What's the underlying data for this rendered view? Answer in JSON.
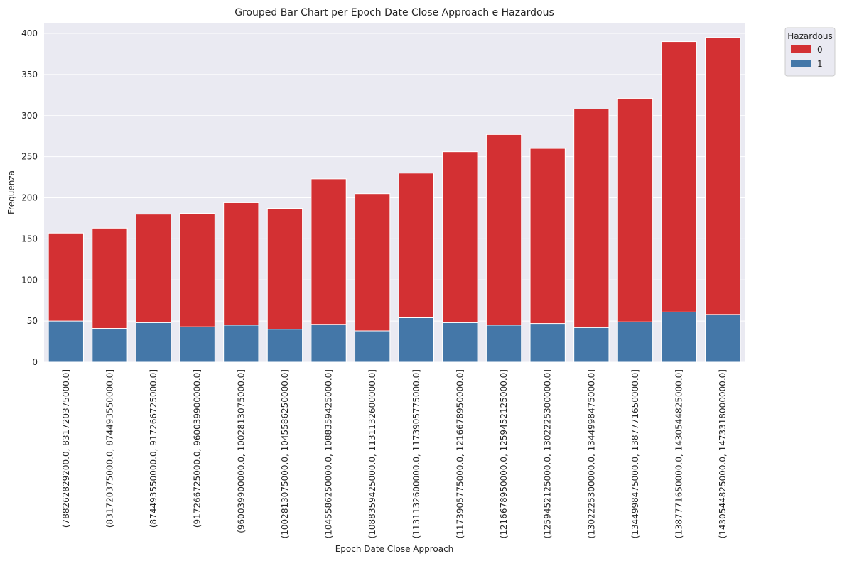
{
  "chart_data": {
    "type": "bar",
    "title": "Grouped Bar Chart per Epoch Date Close Approach e Hazardous",
    "xlabel": "Epoch Date Close Approach",
    "ylabel": "Frequenza",
    "ylim": [
      0,
      410
    ],
    "yticks": [
      0,
      50,
      100,
      150,
      200,
      250,
      300,
      350,
      400
    ],
    "grid": true,
    "legend": {
      "title": "Hazardous",
      "placement": "outside-top-right"
    },
    "categories": [
      "(788262829200.0, 831720375000.0]",
      "(831720375000.0, 874493550000.0]",
      "(874493550000.0, 917266725000.0]",
      "(917266725000.0, 960039900000.0]",
      "(960039900000.0, 1002813075000.0]",
      "(1002813075000.0, 1045586250000.0]",
      "(1045586250000.0, 1088359425000.0]",
      "(1088359425000.0, 1131132600000.0]",
      "(1131132600000.0, 1173905775000.0]",
      "(1173905775000.0, 1216678950000.0]",
      "(1216678950000.0, 1259452125000.0]",
      "(1259452125000.0, 1302225300000.0]",
      "(1302225300000.0, 1344998475000.0]",
      "(1344998475000.0, 1387771650000.0]",
      "(1387771650000.0, 1430544825000.0]",
      "(1430544825000.0, 1473318000000.0]"
    ],
    "series": [
      {
        "name": "0",
        "color": "#d33033",
        "values": [
          157,
          163,
          180,
          181,
          194,
          187,
          223,
          205,
          230,
          256,
          277,
          260,
          308,
          321,
          390,
          395
        ]
      },
      {
        "name": "1",
        "color": "#4477a8",
        "values": [
          50,
          41,
          48,
          43,
          45,
          40,
          46,
          38,
          54,
          48,
          45,
          47,
          42,
          49,
          61,
          58
        ]
      }
    ]
  }
}
